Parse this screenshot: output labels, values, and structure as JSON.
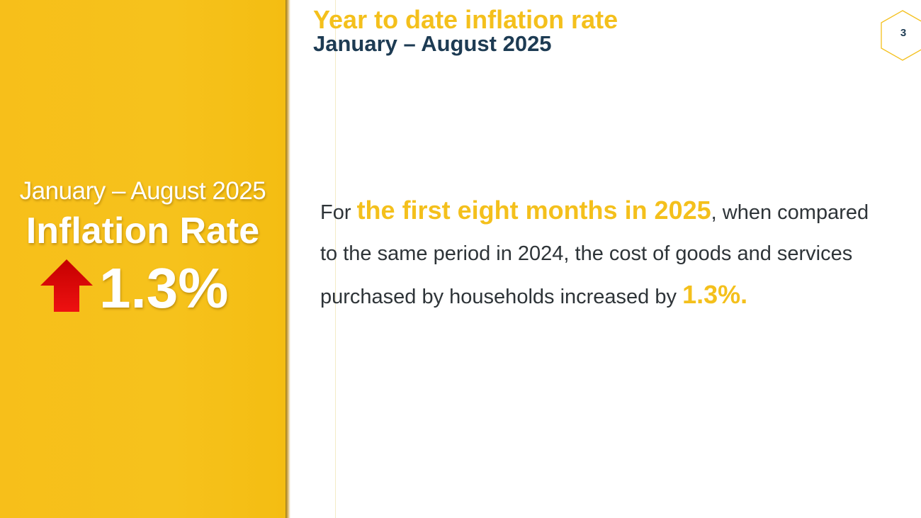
{
  "left_panel": {
    "period": "January – August 2025",
    "title": "Inflation Rate",
    "value": "1.3%",
    "trend_icon": "up-arrow-icon",
    "trend_color": "#d60000"
  },
  "header": {
    "title": "Year to date inflation rate",
    "subtitle": "January – August 2025"
  },
  "page_number": "3",
  "body": {
    "part1": "For ",
    "highlight1": "the first eight months in 2025",
    "part2": ", when compared to the same period in 2024, the cost of goods and services purchased by households increased by ",
    "highlight2": "1.3%."
  },
  "colors": {
    "accent_yellow": "#f4c01c",
    "navy": "#1d3b53",
    "panel_yellow": "#f6c21c"
  }
}
